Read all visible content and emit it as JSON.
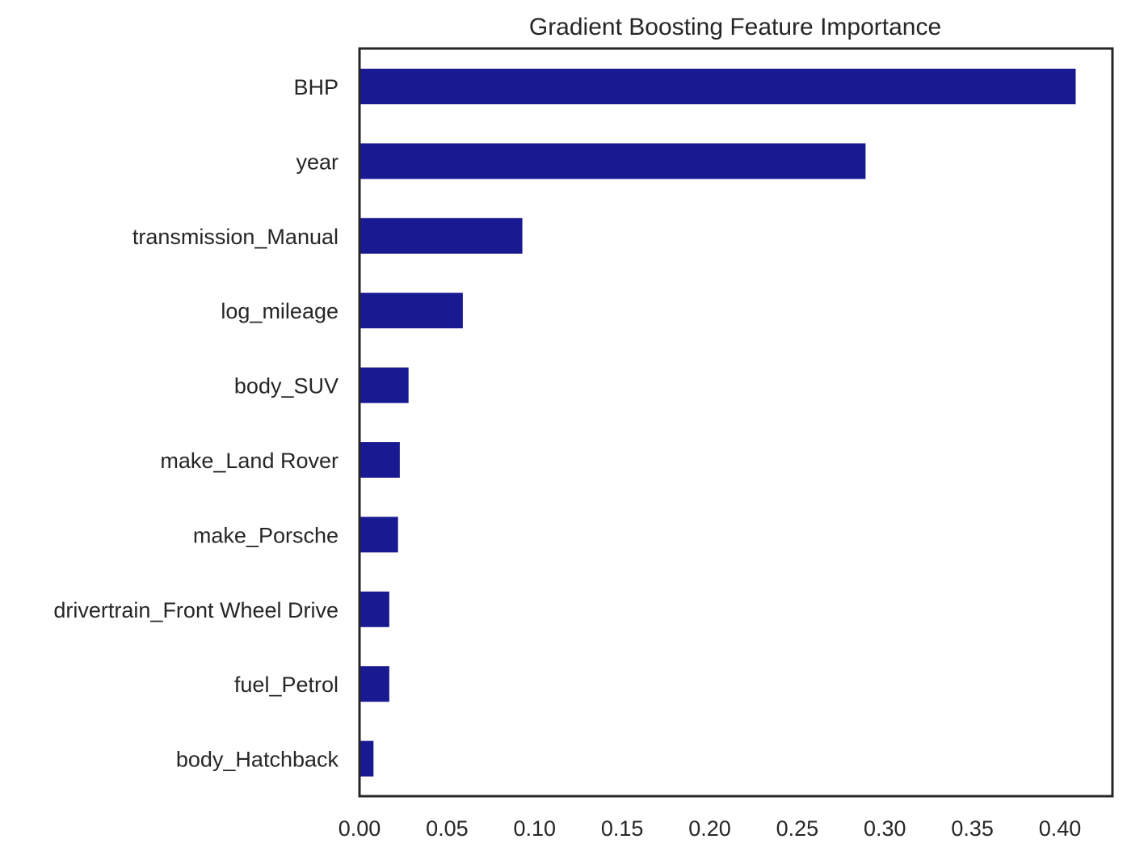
{
  "chart_data": {
    "type": "bar",
    "orientation": "horizontal",
    "title": "Gradient Boosting Feature Importance",
    "xlabel": "",
    "ylabel": "",
    "categories": [
      "BHP",
      "year",
      "transmission_Manual",
      "log_mileage",
      "body_SUV",
      "make_Land Rover",
      "make_Porsche",
      "drivertrain_Front Wheel Drive",
      "fuel_Petrol",
      "body_Hatchback"
    ],
    "values": [
      0.409,
      0.289,
      0.093,
      0.059,
      0.028,
      0.023,
      0.022,
      0.017,
      0.017,
      0.008
    ],
    "xlim": [
      0.0,
      0.43
    ],
    "xticks": [
      0.0,
      0.05,
      0.1,
      0.15,
      0.2,
      0.25,
      0.3,
      0.35,
      0.4
    ],
    "xtick_labels": [
      "0.00",
      "0.05",
      "0.10",
      "0.15",
      "0.20",
      "0.25",
      "0.30",
      "0.35",
      "0.40"
    ],
    "bar_color": "#191991",
    "grid": false,
    "legend": "none"
  }
}
